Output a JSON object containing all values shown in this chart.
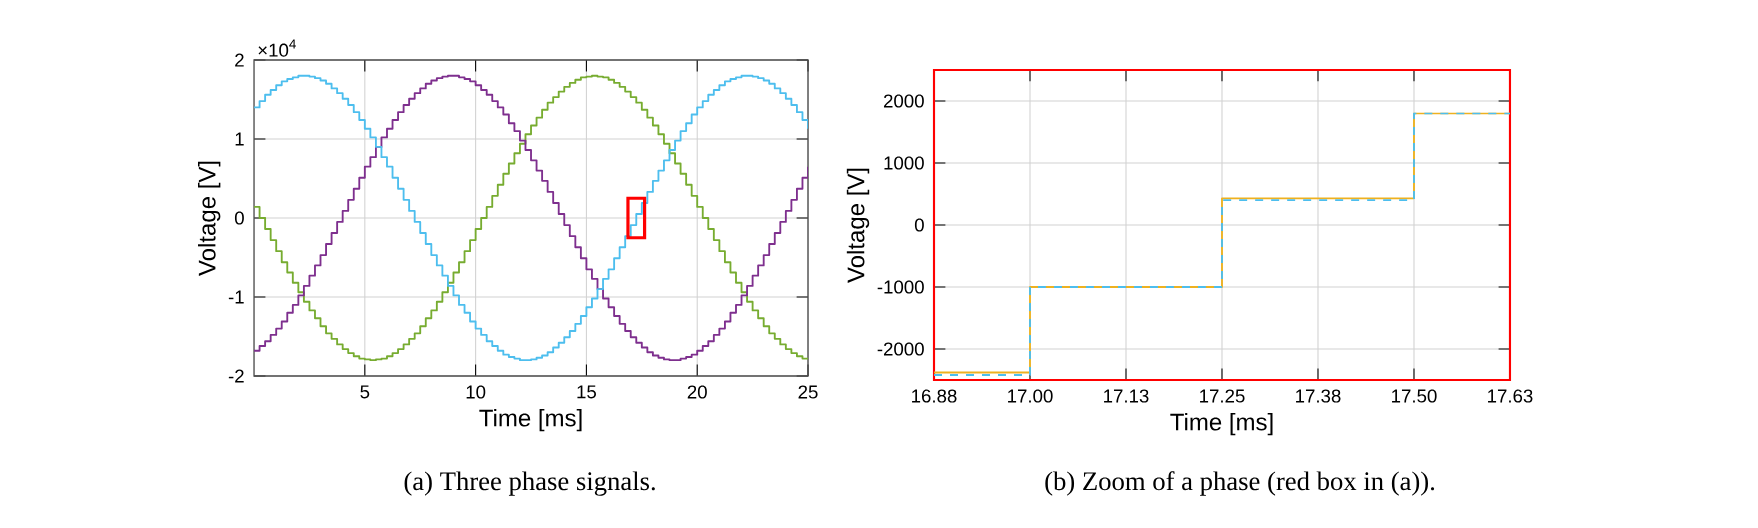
{
  "chart_data": [
    {
      "type": "step",
      "xlabel": "Time [ms]",
      "ylabel": "Voltage [V]",
      "grid": true,
      "annotations": [
        "×10$^{4}$",
        "(a) Three phase signals."
      ],
      "xlim": [
        0,
        25
      ],
      "xticks": [
        5,
        10,
        15,
        20,
        25
      ],
      "ylim": [
        -2,
        2
      ],
      "yticks": [
        -2,
        -1,
        0,
        1,
        2
      ],
      "x": [
        0,
        0.25,
        0.5,
        0.75,
        1,
        1.25,
        1.5,
        1.75,
        2,
        2.25,
        2.5,
        2.75,
        3,
        3.25,
        3.5,
        3.75,
        4,
        4.25,
        4.5,
        4.75,
        5,
        5.25,
        5.5,
        5.75,
        6,
        6.25,
        6.5,
        6.75,
        7,
        7.25,
        7.5,
        7.75,
        8,
        8.25,
        8.5,
        8.75,
        9,
        9.25,
        9.5,
        9.75,
        10,
        10.25,
        10.5,
        10.75,
        11,
        11.25,
        11.5,
        11.75,
        12,
        12.25,
        12.5,
        12.75,
        13,
        13.25,
        13.5,
        13.75,
        14,
        14.25,
        14.5,
        14.75,
        15,
        15.25,
        15.5,
        15.75,
        16,
        16.25,
        16.5,
        16.75,
        17,
        17.25,
        17.5,
        17.75,
        18,
        18.25,
        18.5,
        18.75,
        19,
        19.25,
        19.5,
        19.75,
        20,
        20.25,
        20.5,
        20.75,
        21,
        21.25,
        21.5,
        21.75,
        22,
        22.25,
        22.5,
        22.75,
        23,
        23.25,
        23.5,
        23.75,
        24,
        24.25,
        24.5,
        24.75,
        25
      ],
      "series": [
        {
          "color": "#77ac30",
          "line_style": "solid",
          "values": [
            0.14,
            0,
            -0.14,
            -0.28,
            -0.42,
            -0.56,
            -0.69,
            -0.82,
            -0.94,
            -1.06,
            -1.17,
            -1.27,
            -1.37,
            -1.46,
            -1.53,
            -1.6,
            -1.66,
            -1.71,
            -1.75,
            -1.78,
            -1.79,
            -1.8,
            -1.79,
            -1.78,
            -1.75,
            -1.71,
            -1.66,
            -1.6,
            -1.53,
            -1.46,
            -1.37,
            -1.27,
            -1.17,
            -1.06,
            -0.94,
            -0.82,
            -0.69,
            -0.56,
            -0.42,
            -0.28,
            -0.14,
            0,
            0.14,
            0.28,
            0.42,
            0.56,
            0.69,
            0.82,
            0.94,
            1.06,
            1.17,
            1.27,
            1.37,
            1.46,
            1.53,
            1.6,
            1.66,
            1.71,
            1.75,
            1.78,
            1.79,
            1.8,
            1.79,
            1.78,
            1.75,
            1.71,
            1.66,
            1.6,
            1.53,
            1.46,
            1.37,
            1.27,
            1.17,
            1.06,
            0.94,
            0.82,
            0.69,
            0.56,
            0.42,
            0.28,
            0.14,
            0,
            -0.14,
            -0.28,
            -0.42,
            -0.56,
            -0.69,
            -0.82,
            -0.94,
            -1.06,
            -1.17,
            -1.27,
            -1.37,
            -1.46,
            -1.53,
            -1.6,
            -1.66,
            -1.71,
            -1.75,
            -1.78,
            -1.79
          ]
        },
        {
          "color": "#7e2f8e",
          "line_style": "solid",
          "values": [
            -1.68,
            -1.62,
            -1.56,
            -1.48,
            -1.4,
            -1.31,
            -1.2,
            -1.1,
            -0.98,
            -0.86,
            -0.73,
            -0.6,
            -0.47,
            -0.33,
            -0.19,
            -0.05,
            0.09,
            0.23,
            0.37,
            0.51,
            0.65,
            0.77,
            0.9,
            1.02,
            1.13,
            1.24,
            1.34,
            1.43,
            1.51,
            1.58,
            1.64,
            1.7,
            1.74,
            1.77,
            1.79,
            1.8,
            1.8,
            1.78,
            1.76,
            1.73,
            1.68,
            1.62,
            1.56,
            1.48,
            1.4,
            1.31,
            1.2,
            1.1,
            0.98,
            0.86,
            0.73,
            0.6,
            0.47,
            0.33,
            0.19,
            0.05,
            -0.09,
            -0.23,
            -0.37,
            -0.51,
            -0.65,
            -0.77,
            -0.9,
            -1.02,
            -1.13,
            -1.24,
            -1.34,
            -1.43,
            -1.51,
            -1.58,
            -1.64,
            -1.7,
            -1.74,
            -1.77,
            -1.79,
            -1.8,
            -1.8,
            -1.78,
            -1.76,
            -1.73,
            -1.68,
            -1.62,
            -1.56,
            -1.48,
            -1.4,
            -1.31,
            -1.2,
            -1.1,
            -0.98,
            -0.86,
            -0.73,
            -0.6,
            -0.47,
            -0.33,
            -0.19,
            -0.05,
            0.09,
            0.23,
            0.37,
            0.51,
            0.65
          ]
        },
        {
          "color": "#4dbeee",
          "line_style": "solid",
          "values": [
            1.4,
            1.48,
            1.56,
            1.62,
            1.68,
            1.73,
            1.76,
            1.78,
            1.8,
            1.8,
            1.79,
            1.77,
            1.74,
            1.7,
            1.64,
            1.58,
            1.51,
            1.43,
            1.34,
            1.24,
            1.13,
            1.02,
            0.9,
            0.77,
            0.65,
            0.51,
            0.37,
            0.23,
            0.09,
            -0.05,
            -0.19,
            -0.33,
            -0.47,
            -0.6,
            -0.73,
            -0.86,
            -0.98,
            -1.1,
            -1.2,
            -1.31,
            -1.4,
            -1.48,
            -1.56,
            -1.62,
            -1.68,
            -1.73,
            -1.76,
            -1.78,
            -1.8,
            -1.8,
            -1.79,
            -1.77,
            -1.74,
            -1.7,
            -1.64,
            -1.58,
            -1.51,
            -1.43,
            -1.34,
            -1.24,
            -1.13,
            -1.02,
            -0.9,
            -0.77,
            -0.65,
            -0.51,
            -0.37,
            -0.23,
            -0.09,
            0.05,
            0.19,
            0.33,
            0.47,
            0.6,
            0.73,
            0.86,
            0.98,
            1.1,
            1.2,
            1.31,
            1.4,
            1.48,
            1.56,
            1.62,
            1.68,
            1.73,
            1.76,
            1.78,
            1.8,
            1.8,
            1.79,
            1.77,
            1.74,
            1.7,
            1.64,
            1.58,
            1.51,
            1.43,
            1.34,
            1.24,
            1.13
          ]
        }
      ]
    },
    {
      "type": "step",
      "xlabel": "Time [ms]",
      "ylabel": "Voltage [V]",
      "grid": true,
      "annotations": [
        "(b) Zoom of a phase (red box in (a))."
      ],
      "xlim": [
        16.875,
        17.625
      ],
      "xticks": [
        {
          "value": 16.875,
          "label": "16.88"
        },
        {
          "value": 17,
          "label": "17.00"
        },
        {
          "value": 17.125,
          "label": "17.13"
        },
        {
          "value": 17.25,
          "label": "17.25"
        },
        {
          "value": 17.375,
          "label": "17.38"
        },
        {
          "value": 17.5,
          "label": "17.50"
        },
        {
          "value": 17.625,
          "label": "17.63"
        }
      ],
      "ylim": [
        -2500,
        2500
      ],
      "yticks": [
        -2000,
        -1000,
        0,
        1000,
        2000
      ],
      "x": [
        16.875,
        17,
        17.25,
        17.5,
        17.625
      ],
      "series": [
        {
          "color": "#edb120",
          "line_style": "solid",
          "values": [
            -2380,
            -1000,
            430,
            1800,
            1800
          ]
        },
        {
          "color": "#4dbeee",
          "line_style": "dashed",
          "values": [
            -2420,
            -1000,
            400,
            1800,
            1800
          ]
        }
      ]
    }
  ]
}
